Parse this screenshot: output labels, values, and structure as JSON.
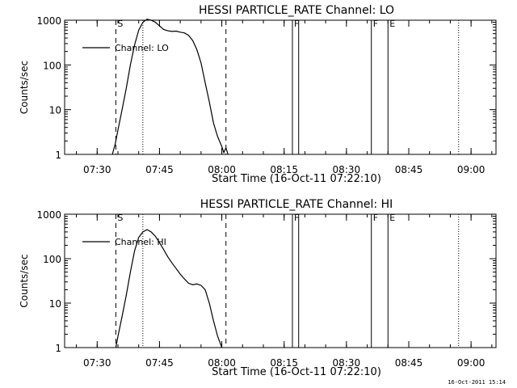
{
  "chart_data": [
    {
      "type": "line",
      "title": "HESSI PARTICLE_RATE Channel: LO",
      "xlabel": "Start Time (16-Oct-11 07:22:10)",
      "ylabel": "Counts/sec",
      "xlim": [
        "07:22:10",
        "09:06:00"
      ],
      "ylim": [
        1,
        1000
      ],
      "yscale": "log",
      "xticks": [
        "07:30",
        "07:45",
        "08:00",
        "08:15",
        "08:30",
        "08:45",
        "09:00"
      ],
      "yticks": [
        "1",
        "10",
        "100",
        "1000"
      ],
      "legend": {
        "position": "top-left",
        "entries": [
          "Channel: LO"
        ]
      },
      "markers": [
        {
          "label": "S",
          "time": "07:34:30",
          "style": "dashed"
        },
        {
          "label": "",
          "time": "07:41:00",
          "style": "dotted"
        },
        {
          "label": "",
          "time": "08:01:00",
          "style": "dashed"
        },
        {
          "label": "F",
          "time": "08:17:00",
          "style": "solid"
        },
        {
          "label": "",
          "time": "08:18:30",
          "style": "solid"
        },
        {
          "label": "F",
          "time": "08:36:00",
          "style": "solid"
        },
        {
          "label": "E",
          "time": "08:40:00",
          "style": "solid"
        },
        {
          "label": "",
          "time": "08:57:00",
          "style": "dotted"
        }
      ],
      "series": [
        {
          "name": "Channel: LO",
          "x": [
            "07:33:40",
            "07:34:20",
            "07:35:00",
            "07:36:00",
            "07:37:00",
            "07:38:00",
            "07:39:00",
            "07:40:00",
            "07:41:00",
            "07:42:00",
            "07:43:00",
            "07:44:00",
            "07:45:00",
            "07:46:00",
            "07:47:00",
            "07:48:00",
            "07:49:00",
            "07:50:00",
            "07:51:00",
            "07:52:00",
            "07:53:00",
            "07:54:00",
            "07:55:00",
            "07:56:00",
            "07:57:00",
            "07:58:00",
            "07:59:00",
            "08:00:00",
            "08:00:30",
            "08:01:00",
            "08:01:30"
          ],
          "y": [
            1,
            1.7,
            3.5,
            10,
            30,
            100,
            280,
            600,
            900,
            1050,
            1000,
            900,
            750,
            620,
            580,
            560,
            570,
            540,
            520,
            460,
            350,
            220,
            110,
            40,
            15,
            5,
            2.5,
            1.5,
            1.1,
            1.4,
            1
          ]
        }
      ]
    },
    {
      "type": "line",
      "title": "HESSI PARTICLE_RATE Channel: HI",
      "xlabel": "Start Time (16-Oct-11 07:22:10)",
      "ylabel": "Counts/sec",
      "xlim": [
        "07:22:10",
        "09:06:00"
      ],
      "ylim": [
        1,
        1000
      ],
      "yscale": "log",
      "xticks": [
        "07:30",
        "07:45",
        "08:00",
        "08:15",
        "08:30",
        "08:45",
        "09:00"
      ],
      "yticks": [
        "1",
        "10",
        "100",
        "1000"
      ],
      "legend": {
        "position": "top-left",
        "entries": [
          "Channel: HI"
        ]
      },
      "markers": [
        {
          "label": "S",
          "time": "07:34:30",
          "style": "dashed"
        },
        {
          "label": "",
          "time": "07:41:00",
          "style": "dotted"
        },
        {
          "label": "",
          "time": "08:01:00",
          "style": "dashed"
        },
        {
          "label": "F",
          "time": "08:17:00",
          "style": "solid"
        },
        {
          "label": "",
          "time": "08:18:30",
          "style": "solid"
        },
        {
          "label": "F",
          "time": "08:36:00",
          "style": "solid"
        },
        {
          "label": "E",
          "time": "08:40:00",
          "style": "solid"
        },
        {
          "label": "",
          "time": "08:57:00",
          "style": "dotted"
        }
      ],
      "series": [
        {
          "name": "Channel: HI",
          "x": [
            "07:34:30",
            "07:35:00",
            "07:36:00",
            "07:37:00",
            "07:38:00",
            "07:39:00",
            "07:40:00",
            "07:41:00",
            "07:42:00",
            "07:43:00",
            "07:44:00",
            "07:45:00",
            "07:46:00",
            "07:47:00",
            "07:48:00",
            "07:49:00",
            "07:50:00",
            "07:51:00",
            "07:52:00",
            "07:53:00",
            "07:54:00",
            "07:55:00",
            "07:56:00",
            "07:57:00",
            "07:58:00",
            "07:59:00",
            "08:00:00"
          ],
          "y": [
            1,
            1.8,
            5,
            15,
            50,
            150,
            300,
            400,
            450,
            400,
            320,
            230,
            160,
            110,
            80,
            60,
            45,
            35,
            28,
            26,
            27,
            25,
            20,
            10,
            4,
            1.8,
            1
          ]
        }
      ]
    }
  ],
  "footer": {
    "timestamp": "16-Oct-2011 15:14"
  }
}
